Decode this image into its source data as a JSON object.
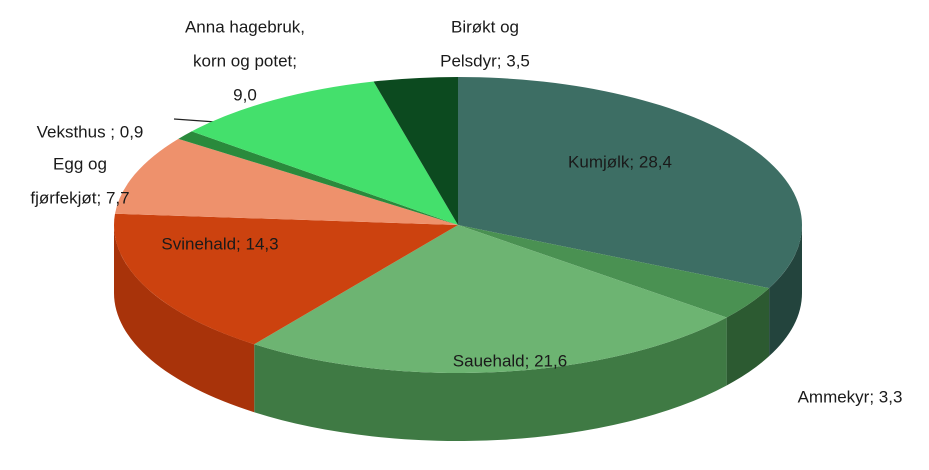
{
  "chart_data": {
    "type": "pie3d",
    "labels": [
      [
        "Kumjølk; 28,4"
      ],
      [
        "Ammekyr;  3,3"
      ],
      [
        "Sauehald; 21,6"
      ],
      [
        "Svinehald; 14,3"
      ],
      [
        "Egg og",
        "fjørfekjøt; 7,7"
      ],
      [
        "Veksthus ; 0,9"
      ],
      [
        "Anna hagebruk,",
        "korn og potet;",
        "9,0"
      ],
      [
        "Birøkt og",
        "Pelsdyr; 3,5"
      ]
    ],
    "values": [
      28.4,
      3.3,
      21.6,
      14.3,
      7.7,
      0.9,
      9.0,
      3.5
    ],
    "colors": [
      "#3d6e64",
      "#4a9152",
      "#6db472",
      "#cc420f",
      "#ee916c",
      "#2a8a3c",
      "#44e06c",
      "#0c4a1f"
    ],
    "side_colors": [
      "#23443d",
      "#2c5a31",
      "#3f7a44",
      "#a8330a",
      "#c26e4e",
      "#1c6029",
      "#2aa84a",
      "#073012"
    ]
  }
}
